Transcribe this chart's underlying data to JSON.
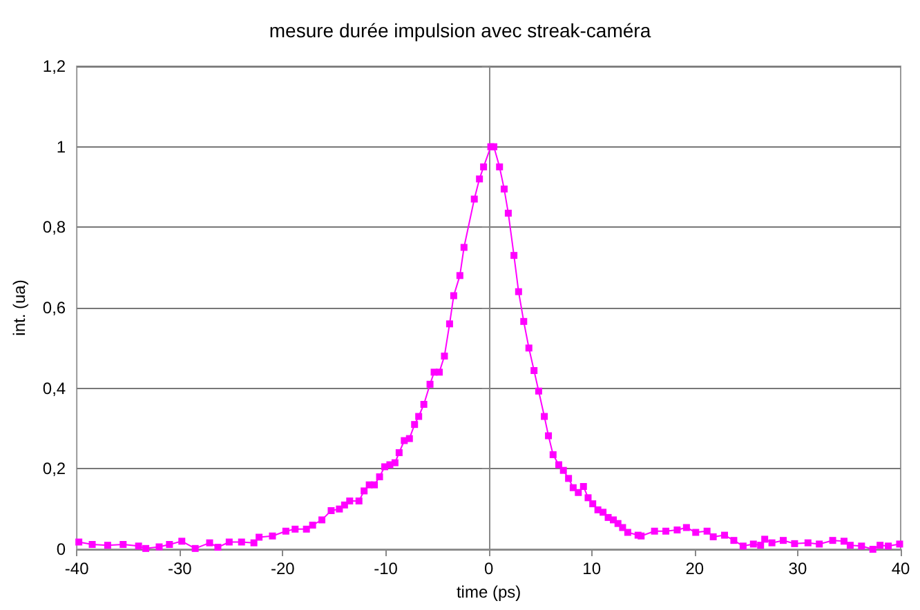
{
  "chart_data": {
    "type": "line",
    "title": "mesure durée impulsion avec streak-caméra",
    "xlabel": "time (ps)",
    "ylabel": "int. (ua)",
    "x": [
      -39.8,
      -38.5,
      -37,
      -35.5,
      -34,
      -33.3,
      -32,
      -31,
      -29.8,
      -28.5,
      -27.1,
      -26.3,
      -25.2,
      -24,
      -22.8,
      -22.3,
      -21,
      -19.7,
      -18.8,
      -17.7,
      -17.1,
      -16.2,
      -15.3,
      -14.5,
      -14,
      -13.5,
      -12.6,
      -12.1,
      -11.6,
      -11.1,
      -10.6,
      -10.1,
      -9.6,
      -9.1,
      -8.7,
      -8.2,
      -7.7,
      -7.2,
      -6.8,
      -6.3,
      -5.7,
      -5.3,
      -4.8,
      -4.3,
      -3.8,
      -3.4,
      -2.8,
      -2.4,
      -1.4,
      -0.9,
      -0.5,
      0.2,
      0.5,
      1.05,
      1.5,
      1.9,
      2.45,
      2.9,
      3.4,
      3.9,
      4.4,
      4.85,
      5.4,
      5.8,
      6.25,
      6.8,
      7.25,
      7.75,
      8.2,
      8.7,
      9.2,
      9.65,
      10.1,
      10.6,
      11.1,
      11.6,
      12.1,
      12.55,
      13.0,
      13.5,
      14.5,
      14.8,
      16.1,
      17.2,
      18.3,
      19.2,
      20.1,
      21.2,
      21.8,
      22.9,
      23.8,
      24.7,
      25.7,
      26.4,
      26.8,
      27.5,
      28.6,
      29.7,
      31,
      32.1,
      33.4,
      34.5,
      35.1,
      36.2,
      37.3,
      38,
      38.8,
      39.9
    ],
    "series": [
      {
        "color": "#ff00ff",
        "values": [
          0.018,
          0.012,
          0.01,
          0.012,
          0.008,
          0.002,
          0.006,
          0.012,
          0.02,
          0.002,
          0.016,
          0.005,
          0.018,
          0.018,
          0.016,
          0.03,
          0.033,
          0.045,
          0.05,
          0.05,
          0.06,
          0.073,
          0.096,
          0.1,
          0.11,
          0.12,
          0.12,
          0.145,
          0.16,
          0.16,
          0.18,
          0.205,
          0.21,
          0.215,
          0.24,
          0.27,
          0.275,
          0.31,
          0.33,
          0.36,
          0.41,
          0.44,
          0.44,
          0.48,
          0.56,
          0.63,
          0.68,
          0.75,
          0.87,
          0.92,
          0.95,
          1.0,
          1.0,
          0.95,
          0.895,
          0.835,
          0.73,
          0.64,
          0.566,
          0.5,
          0.444,
          0.393,
          0.33,
          0.282,
          0.235,
          0.21,
          0.196,
          0.176,
          0.153,
          0.141,
          0.156,
          0.128,
          0.113,
          0.098,
          0.092,
          0.079,
          0.073,
          0.064,
          0.054,
          0.042,
          0.035,
          0.033,
          0.045,
          0.045,
          0.048,
          0.054,
          0.042,
          0.045,
          0.031,
          0.035,
          0.022,
          0.008,
          0.013,
          0.01,
          0.025,
          0.016,
          0.022,
          0.014,
          0.016,
          0.013,
          0.022,
          0.02,
          0.01,
          0.008,
          0,
          0.01,
          0.008,
          0.013
        ]
      }
    ],
    "xlim": [
      -40,
      40
    ],
    "xticks": [
      -40,
      -30,
      -20,
      -10,
      0,
      10,
      20,
      30,
      40
    ],
    "ylim": [
      0,
      1.2
    ],
    "yticks": [
      0,
      {
        "value": 0.2,
        "label": "0,2"
      },
      {
        "value": 0.4,
        "label": "0,4"
      },
      {
        "value": 0.6,
        "label": "0,6"
      },
      {
        "value": 0.8,
        "label": "0,8"
      },
      1,
      {
        "value": 1.2,
        "label": "1,2"
      }
    ],
    "grid": "y",
    "marker": "square",
    "line_style": "solid"
  }
}
